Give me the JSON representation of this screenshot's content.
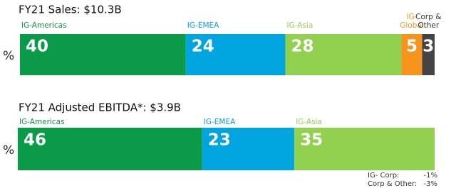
{
  "chart_data": [
    {
      "type": "stacked_bar_100",
      "title": "FY21 Sales: $10.3B",
      "ylabel": "%",
      "series": [
        {
          "name": "IG-Americas",
          "color": "#0a9a48",
          "values": [
            40
          ]
        },
        {
          "name": "IG-EMEA",
          "color": "#00a5e0",
          "values": [
            24
          ]
        },
        {
          "name": "IG-Asia",
          "color": "#92d050",
          "values": [
            28
          ]
        },
        {
          "name": "IG-\nGlobal",
          "color": "#f7941d",
          "values": [
            5
          ]
        },
        {
          "name": "Corp &\nOther",
          "color": "#444444",
          "values": [
            3
          ]
        }
      ]
    },
    {
      "type": "stacked_bar_100",
      "title": "FY21 Adjusted EBITDA*: $3.9B",
      "ylabel": "%",
      "series": [
        {
          "name": "IG-Americas",
          "color": "#0a9a48",
          "values": [
            46
          ]
        },
        {
          "name": "IG-EMEA",
          "color": "#00a5e0",
          "values": [
            23
          ]
        },
        {
          "name": "IG-Asia",
          "color": "#92d050",
          "values": [
            35
          ]
        }
      ],
      "notes": [
        {
          "label": "IG- Corp:",
          "value": "-1%"
        },
        {
          "label": "Corp & Other:",
          "value": "-3%"
        }
      ]
    }
  ]
}
